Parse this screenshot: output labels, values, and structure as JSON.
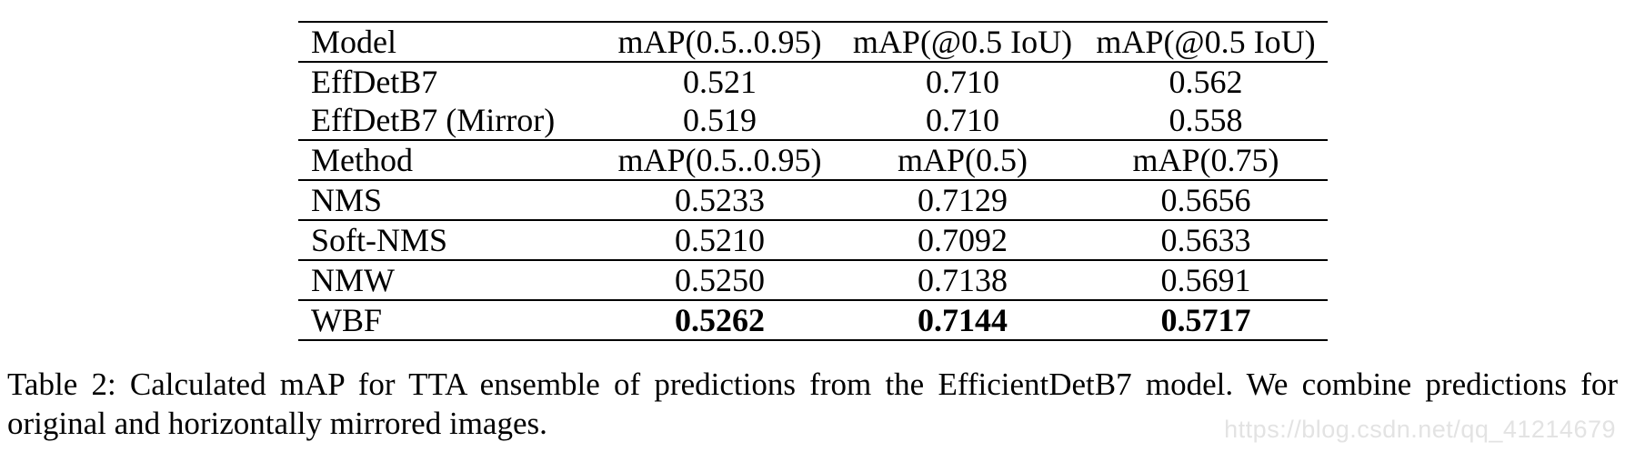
{
  "page": {
    "background_color": "#ffffff",
    "text_color": "#000000"
  },
  "table": {
    "sections": [
      {
        "header": [
          "Model",
          "mAP(0.5..0.95)",
          "mAP(@0.5 IoU)",
          "mAP(@0.5 IoU)"
        ],
        "rows": [
          {
            "cells": [
              "EffDetB7",
              "0.521",
              "0.710",
              "0.562"
            ]
          },
          {
            "cells": [
              "EffDetB7 (Mirror)",
              "0.519",
              "0.710",
              "0.558"
            ]
          }
        ]
      },
      {
        "header": [
          "Method",
          "mAP(0.5..0.95)",
          "mAP(0.5)",
          "mAP(0.75)"
        ],
        "rows": [
          {
            "cells": [
              "NMS",
              "0.5233",
              "0.7129",
              "0.5656"
            ]
          },
          {
            "cells": [
              "Soft-NMS",
              "0.5210",
              "0.7092",
              "0.5633"
            ]
          },
          {
            "cells": [
              "NMW",
              "0.5250",
              "0.7138",
              "0.5691"
            ]
          },
          {
            "cells": [
              "WBF",
              "0.5262",
              "0.7144",
              "0.5717"
            ],
            "values_bold": true
          }
        ]
      }
    ]
  },
  "caption": {
    "line1": "Table 2: Calculated mAP for TTA ensemble of predictions from the EfficientDetB7 model. We combine predictions for",
    "line2": "original and horizontally mirrored images."
  },
  "watermark": {
    "text": "https://blog.csdn.net/qq_41214679",
    "color": "#e3e3e3"
  }
}
